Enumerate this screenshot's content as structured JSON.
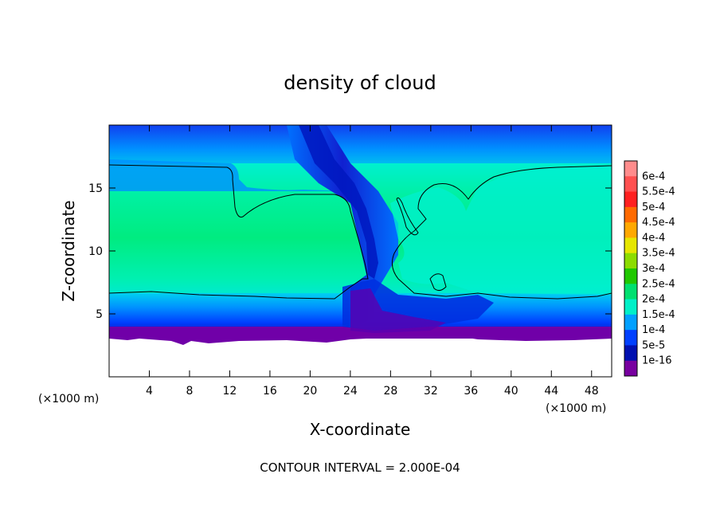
{
  "chart_data": {
    "type": "heatmap",
    "title": "density of cloud",
    "xlabel": "X-coordinate",
    "ylabel": "Z-coordinate",
    "x_unit_label": "(×1000 m)",
    "y_unit_label": "(×1000 m)",
    "xlim": [
      0,
      50
    ],
    "ylim": [
      0,
      20
    ],
    "x_ticks": [
      "4",
      "8",
      "12",
      "16",
      "20",
      "24",
      "28",
      "32",
      "36",
      "40",
      "44",
      "48"
    ],
    "x_tick_values": [
      4,
      8,
      12,
      16,
      20,
      24,
      28,
      32,
      36,
      40,
      44,
      48
    ],
    "y_ticks": [
      "5",
      "10",
      "15"
    ],
    "y_tick_values": [
      5,
      10,
      15
    ],
    "footnote": "CONTOUR INTERVAL = 2.000E-04",
    "colorbar": {
      "labels": [
        "6e-4",
        "5.5e-4",
        "5e-4",
        "4.5e-4",
        "4e-4",
        "3.5e-4",
        "3e-4",
        "2.5e-4",
        "2e-4",
        "1.5e-4",
        "1e-4",
        "5e-5",
        "1e-16"
      ],
      "colors": [
        "#ff8c8c",
        "#ff5050",
        "#ff2020",
        "#ff6a00",
        "#ffa800",
        "#e6e600",
        "#8cdc00",
        "#20c800",
        "#00e070",
        "#00f0c8",
        "#00a0ff",
        "#0040ff",
        "#0010b0",
        "#7800a0"
      ]
    },
    "field": {
      "background_level": "2e-4",
      "cloud_layer_z": [
        6.5,
        16.8
      ],
      "cloud_base_z": 3,
      "contour_level": "2e-4"
    }
  },
  "colors": {
    "plot_border": "#000000",
    "contour_line": "#000000",
    "white_region": "#ffffff"
  }
}
